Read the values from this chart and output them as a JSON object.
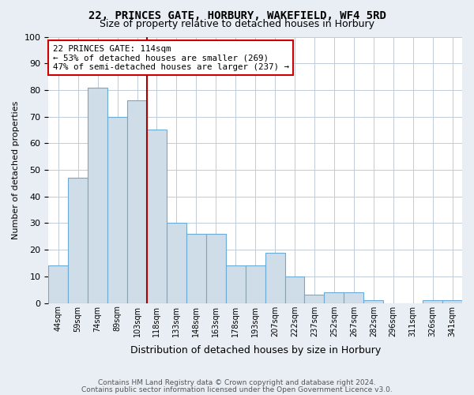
{
  "title1": "22, PRINCES GATE, HORBURY, WAKEFIELD, WF4 5RD",
  "title2": "Size of property relative to detached houses in Horbury",
  "xlabel": "Distribution of detached houses by size in Horbury",
  "ylabel": "Number of detached properties",
  "categories": [
    "44sqm",
    "59sqm",
    "74sqm",
    "89sqm",
    "103sqm",
    "118sqm",
    "133sqm",
    "148sqm",
    "163sqm",
    "178sqm",
    "193sqm",
    "207sqm",
    "222sqm",
    "237sqm",
    "252sqm",
    "267sqm",
    "282sqm",
    "296sqm",
    "311sqm",
    "326sqm",
    "341sqm"
  ],
  "values": [
    14,
    47,
    81,
    70,
    76,
    65,
    30,
    26,
    26,
    14,
    14,
    19,
    10,
    3,
    4,
    4,
    1,
    0,
    0,
    1,
    1
  ],
  "bar_color": "#cfdde8",
  "bar_edge_color": "#6aaad4",
  "property_line_x": 5,
  "property_line_color": "#aa0000",
  "annotation_text": "22 PRINCES GATE: 114sqm\n← 53% of detached houses are smaller (269)\n47% of semi-detached houses are larger (237) →",
  "annotation_box_color": "#ffffff",
  "annotation_box_edge": "#cc0000",
  "ylim": [
    0,
    100
  ],
  "yticks": [
    0,
    10,
    20,
    30,
    40,
    50,
    60,
    70,
    80,
    90,
    100
  ],
  "footer1": "Contains HM Land Registry data © Crown copyright and database right 2024.",
  "footer2": "Contains public sector information licensed under the Open Government Licence v3.0.",
  "bg_color": "#e8eef4",
  "plot_bg_color": "#ffffff",
  "grid_color": "#c0ccd8"
}
